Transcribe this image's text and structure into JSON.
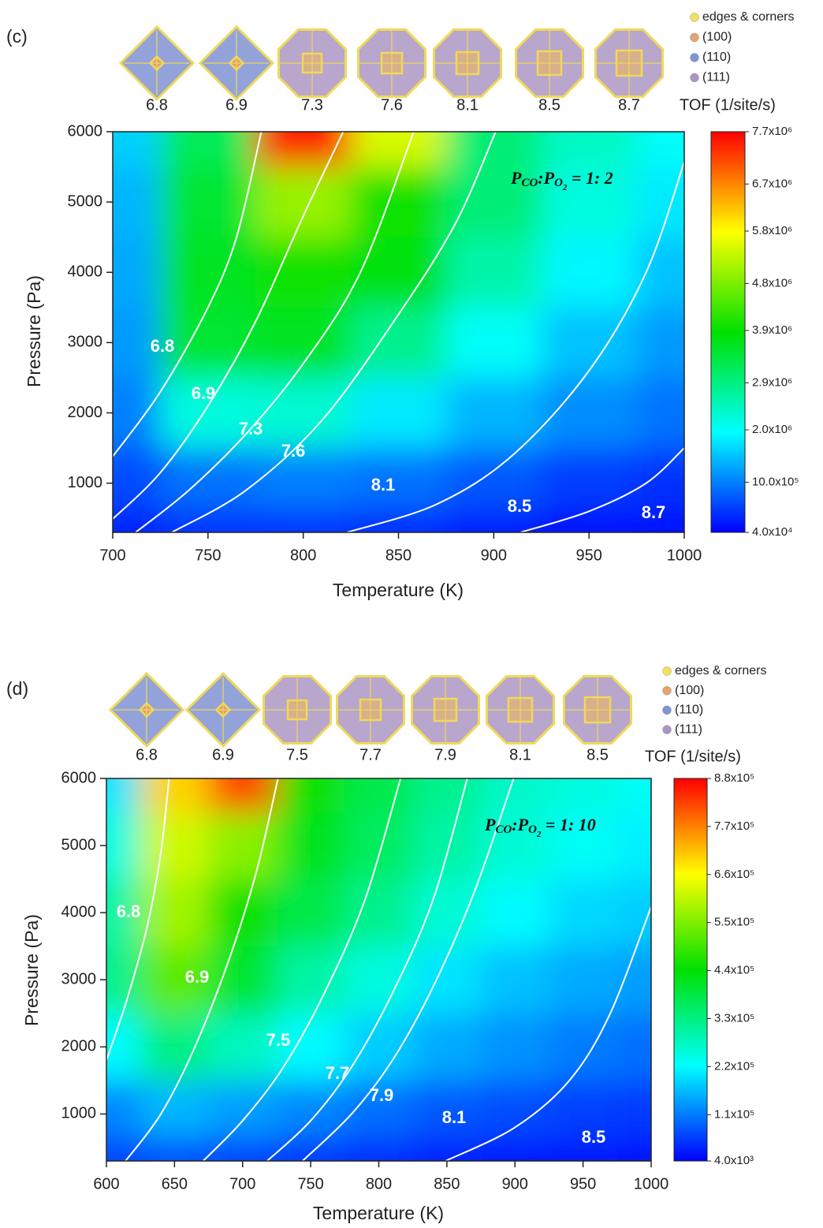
{
  "chart_data": [
    {
      "type": "contour",
      "panel_label": "(c)",
      "xlabel": "Temperature (K)",
      "ylabel": "Pressure (Pa)",
      "xlim": [
        700,
        1000
      ],
      "ylim": [
        300,
        6000
      ],
      "xticks": [
        700,
        750,
        800,
        850,
        900,
        950,
        1000
      ],
      "yticks": [
        1000,
        2000,
        3000,
        4000,
        5000,
        6000
      ],
      "x_grid": [
        700,
        750,
        800,
        850,
        900,
        950,
        1000
      ],
      "y_grid": [
        6000,
        5000,
        4000,
        3000,
        2000,
        1000,
        300
      ],
      "z": [
        [
          1600000,
          3200000,
          7500000,
          5500000,
          3000000,
          2400000,
          2000000
        ],
        [
          1400000,
          3500000,
          5000000,
          4000000,
          3000000,
          2200000,
          1800000
        ],
        [
          1300000,
          3600000,
          4000000,
          3800000,
          2600000,
          1900000,
          1500000
        ],
        [
          1200000,
          3500000,
          3600000,
          2800000,
          2000000,
          1500000,
          1200000
        ],
        [
          1000000,
          2200000,
          2300000,
          1800000,
          1400000,
          1100000,
          900000
        ],
        [
          600000,
          900000,
          1000000,
          900000,
          700000,
          500000,
          400000
        ],
        [
          300000,
          400000,
          400000,
          350000,
          250000,
          150000,
          100000
        ]
      ],
      "colormap": [
        "#0000ff",
        "#00ffff",
        "#00e000",
        "#ffff00",
        "#ff0000"
      ],
      "zlim": [
        40000,
        7700000
      ],
      "colorbar_title": "TOF (1/site/s)",
      "colorbar_ticks": [
        {
          "value": 40000,
          "label": "4.0x10⁴"
        },
        {
          "value": 1000000,
          "label": "10.0x10⁵"
        },
        {
          "value": 2000000,
          "label": "2.0x10⁶"
        },
        {
          "value": 2900000,
          "label": "2.9x10⁶"
        },
        {
          "value": 3900000,
          "label": "3.9x10⁶"
        },
        {
          "value": 4800000,
          "label": "4.8x10⁶"
        },
        {
          "value": 5800000,
          "label": "5.8x10⁶"
        },
        {
          "value": 6700000,
          "label": "6.7x10⁶"
        },
        {
          "value": 7700000,
          "label": "7.7x10⁶"
        }
      ],
      "contour_color": "#ffffff",
      "contours": [
        {
          "level": 6.8,
          "x": [
            700,
            725,
            750,
            765,
            778
          ],
          "y": [
            1380,
            2300,
            3500,
            4500,
            6000
          ]
        },
        {
          "level": 6.9,
          "x": [
            700,
            725,
            750,
            775,
            800,
            821
          ],
          "y": [
            490,
            1150,
            2100,
            3300,
            4800,
            6000
          ]
        },
        {
          "level": 7.3,
          "x": [
            712,
            740,
            770,
            800,
            830,
            858
          ],
          "y": [
            300,
            900,
            1700,
            2700,
            4000,
            6000
          ]
        },
        {
          "level": 7.6,
          "x": [
            731,
            770,
            810,
            850,
            880,
            901
          ],
          "y": [
            300,
            900,
            1900,
            3400,
            4700,
            6000
          ]
        },
        {
          "level": 8.1,
          "x": [
            823,
            870,
            910,
            950,
            980,
            1000
          ],
          "y": [
            300,
            700,
            1400,
            2600,
            4000,
            5570
          ]
        },
        {
          "level": 8.5,
          "x": [
            914,
            950,
            980,
            1000
          ],
          "y": [
            300,
            600,
            1000,
            1500
          ]
        },
        {
          "level": 8.7,
          "x": [],
          "y": []
        }
      ],
      "annotation": [
        "P",
        "CO",
        ":",
        "P",
        "O",
        "2",
        " = 1: 2"
      ],
      "facet_legend": [
        {
          "name": "edges & corners",
          "color": "#f2e05a"
        },
        {
          "name": "(100)",
          "color": "#e6a36b"
        },
        {
          "name": "(110)",
          "color": "#7f93d6"
        },
        {
          "name": "(111)",
          "color": "#ab95c6"
        }
      ]
    },
    {
      "type": "contour",
      "panel_label": "(d)",
      "xlabel": "Temperature (K)",
      "ylabel": "Pressure (Pa)",
      "xlim": [
        600,
        1000
      ],
      "ylim": [
        300,
        6000
      ],
      "xticks": [
        600,
        650,
        700,
        750,
        800,
        850,
        900,
        950,
        1000
      ],
      "yticks": [
        1000,
        2000,
        3000,
        4000,
        5000,
        6000
      ],
      "x_grid": [
        600,
        650,
        700,
        750,
        800,
        850,
        900,
        950,
        1000
      ],
      "y_grid": [
        6000,
        5000,
        4000,
        3000,
        2000,
        1000,
        300
      ],
      "z": [
        [
          200000,
          700000,
          820000,
          450000,
          380000,
          320000,
          270000,
          250000,
          230000
        ],
        [
          250000,
          620000,
          560000,
          420000,
          360000,
          300000,
          260000,
          230000,
          210000
        ],
        [
          300000,
          580000,
          450000,
          380000,
          320000,
          260000,
          220000,
          190000,
          180000
        ],
        [
          320000,
          520000,
          400000,
          300000,
          250000,
          200000,
          170000,
          150000,
          140000
        ],
        [
          220000,
          330000,
          280000,
          220000,
          180000,
          150000,
          130000,
          110000,
          100000
        ],
        [
          120000,
          160000,
          140000,
          120000,
          100000,
          80000,
          70000,
          60000,
          55000
        ],
        [
          60000,
          70000,
          60000,
          50000,
          40000,
          30000,
          25000,
          20000,
          15000
        ]
      ],
      "colormap": [
        "#0000ff",
        "#00ffff",
        "#00e000",
        "#ffff00",
        "#ff0000"
      ],
      "zlim": [
        4000,
        880000
      ],
      "colorbar_title": "TOF (1/site/s)",
      "colorbar_ticks": [
        {
          "value": 4000,
          "label": "4.0x10³"
        },
        {
          "value": 110000,
          "label": "1.1x10⁵"
        },
        {
          "value": 220000,
          "label": "2.2x10⁵"
        },
        {
          "value": 330000,
          "label": "3.3x10⁵"
        },
        {
          "value": 440000,
          "label": "4.4x10⁵"
        },
        {
          "value": 550000,
          "label": "5.5x10⁵"
        },
        {
          "value": 660000,
          "label": "6.6x10⁵"
        },
        {
          "value": 770000,
          "label": "7.7x10⁵"
        },
        {
          "value": 880000,
          "label": "8.8x10⁵"
        }
      ],
      "contour_color": "#ffffff",
      "contours": [
        {
          "level": 6.8,
          "x": [
            600,
            615,
            630,
            640,
            646
          ],
          "y": [
            1800,
            2700,
            3800,
            4900,
            6000
          ]
        },
        {
          "level": 6.9,
          "x": [
            614,
            640,
            665,
            690,
            710,
            726
          ],
          "y": [
            300,
            1000,
            2000,
            3300,
            4600,
            6000
          ]
        },
        {
          "level": 7.5,
          "x": [
            671,
            700,
            730,
            760,
            790,
            816
          ],
          "y": [
            300,
            900,
            1700,
            2800,
            4200,
            6000
          ]
        },
        {
          "level": 7.7,
          "x": [
            718,
            750,
            780,
            810,
            840,
            865
          ],
          "y": [
            300,
            900,
            1700,
            2800,
            4200,
            6000
          ]
        },
        {
          "level": 7.9,
          "x": [
            744,
            780,
            810,
            840,
            870,
            899
          ],
          "y": [
            300,
            1000,
            1800,
            2900,
            4300,
            6000
          ]
        },
        {
          "level": 8.1,
          "x": [
            849,
            900,
            940,
            970,
            1000
          ],
          "y": [
            300,
            800,
            1500,
            2500,
            4090
          ]
        },
        {
          "level": 8.5,
          "x": [],
          "y": []
        }
      ],
      "annotation": [
        "P",
        "CO",
        ":",
        "P",
        "O",
        "2",
        " = 1: 10"
      ],
      "facet_legend": [
        {
          "name": "edges  & corners",
          "color": "#f2e05a"
        },
        {
          "name": "(100)",
          "color": "#e6a36b"
        },
        {
          "name": "(110)",
          "color": "#7f93d6"
        },
        {
          "name": "(111)",
          "color": "#ab95c6"
        }
      ]
    }
  ]
}
